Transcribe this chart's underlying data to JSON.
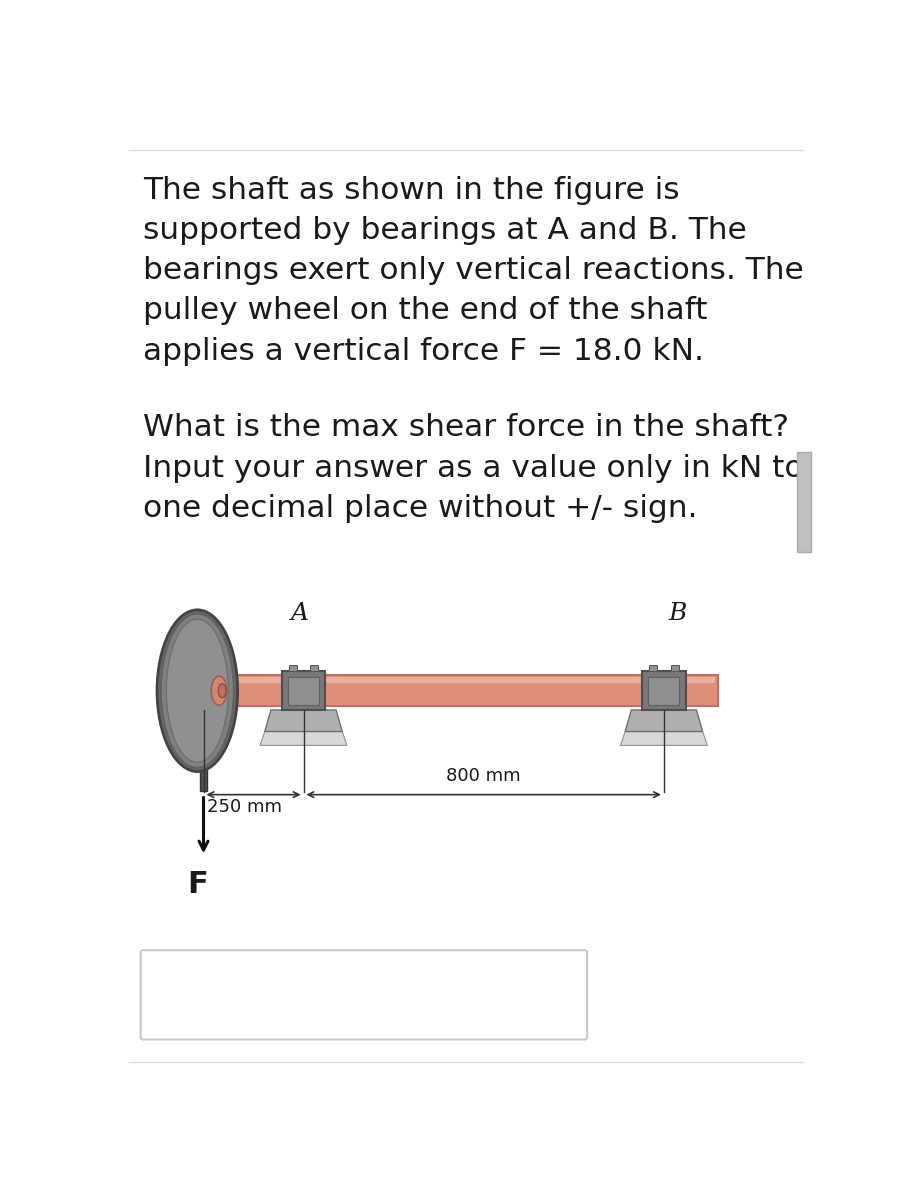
{
  "text_paragraph1_lines": [
    "The shaft as shown in the figure is",
    "supported by bearings at A and B. The",
    "bearings exert only vertical reactions. The",
    "pulley wheel on the end of the shaft",
    "applies a vertical force F = 18.0 kN."
  ],
  "text_paragraph2_lines": [
    "What is the max shear force in the shaft?",
    "Input your answer as a value only in kN to",
    "one decimal place without +/- sign."
  ],
  "label_A": "A",
  "label_B": "B",
  "label_F": "F",
  "dim_250": "250 mm",
  "dim_800": "800 mm",
  "bg_color": "#ffffff",
  "text_color": "#1a1a1a",
  "shaft_color": "#e0907a",
  "shaft_edge_color": "#c07060",
  "shaft_highlight": "#f0b8a8",
  "bearing_collar_color": "#787878",
  "bearing_collar_dark": "#505050",
  "bearing_inner_color": "#909090",
  "bearing_base_top_color": "#b0b0b0",
  "bearing_base_bot_color": "#d8d8d8",
  "bearing_shadow_color": "#e8e8e8",
  "pulley_outer_color": "#686868",
  "pulley_outer_edge": "#444444",
  "pulley_rim_color": "#888888",
  "pulley_hub_color": "#cc8870",
  "pulley_hub_edge": "#a06050",
  "pulley_cap_color": "#bb7060",
  "stub_color": "#505050",
  "stub_edge": "#333333",
  "arrow_color": "#111111",
  "dim_line_color": "#333333",
  "box_edge_color": "#c8c8c8",
  "scroll_color": "#c0c0c0"
}
